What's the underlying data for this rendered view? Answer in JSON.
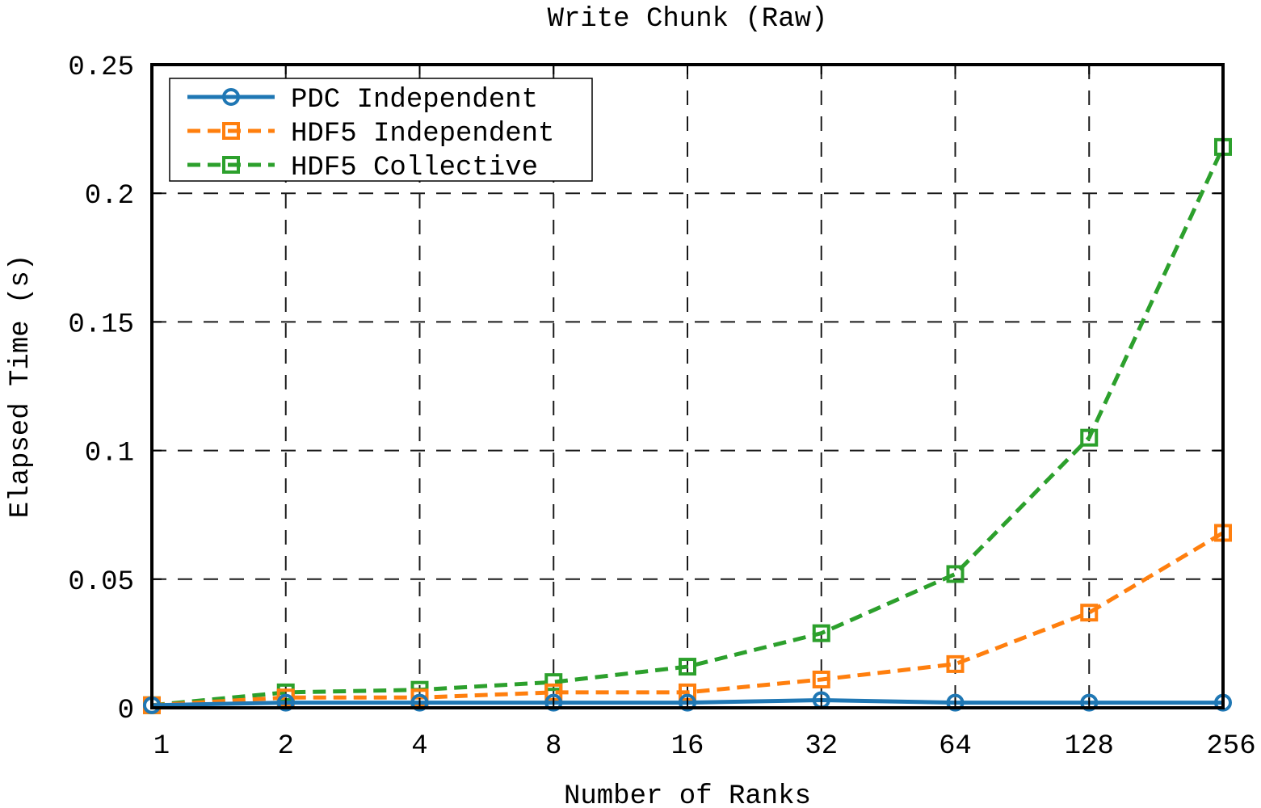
{
  "chart_data": {
    "type": "line",
    "title": "Write Chunk (Raw)",
    "xlabel": "Number of Ranks",
    "ylabel": "Elapsed Time (s)",
    "x": [
      1,
      2,
      4,
      8,
      16,
      32,
      64,
      128,
      256
    ],
    "x_tick_labels": [
      "1",
      "2",
      "4",
      "8",
      "16",
      "32",
      "64",
      "128",
      "256"
    ],
    "x_scale": "log2",
    "ylim": [
      0,
      0.25
    ],
    "y_ticks": [
      0,
      0.05,
      0.1,
      0.15,
      0.2,
      0.25
    ],
    "y_tick_labels": [
      "0",
      "0.05",
      "0.1",
      "0.15",
      "0.2",
      "0.25"
    ],
    "grid": true,
    "legend_position": "top-left",
    "series": [
      {
        "name": "PDC Independent",
        "color": "#1f77b4",
        "line_style": "solid",
        "marker": "circle",
        "values": [
          0.001,
          0.002,
          0.002,
          0.002,
          0.002,
          0.003,
          0.002,
          0.002,
          0.002
        ]
      },
      {
        "name": "HDF5 Independent",
        "color": "#ff7f0e",
        "line_style": "dashed",
        "marker": "square",
        "values": [
          0.001,
          0.004,
          0.004,
          0.006,
          0.006,
          0.011,
          0.017,
          0.037,
          0.068
        ]
      },
      {
        "name": "HDF5 Collective",
        "color": "#2ca02c",
        "line_style": "dashed",
        "marker": "square",
        "values": [
          0.001,
          0.006,
          0.007,
          0.01,
          0.016,
          0.029,
          0.052,
          0.105,
          0.218
        ]
      }
    ]
  }
}
